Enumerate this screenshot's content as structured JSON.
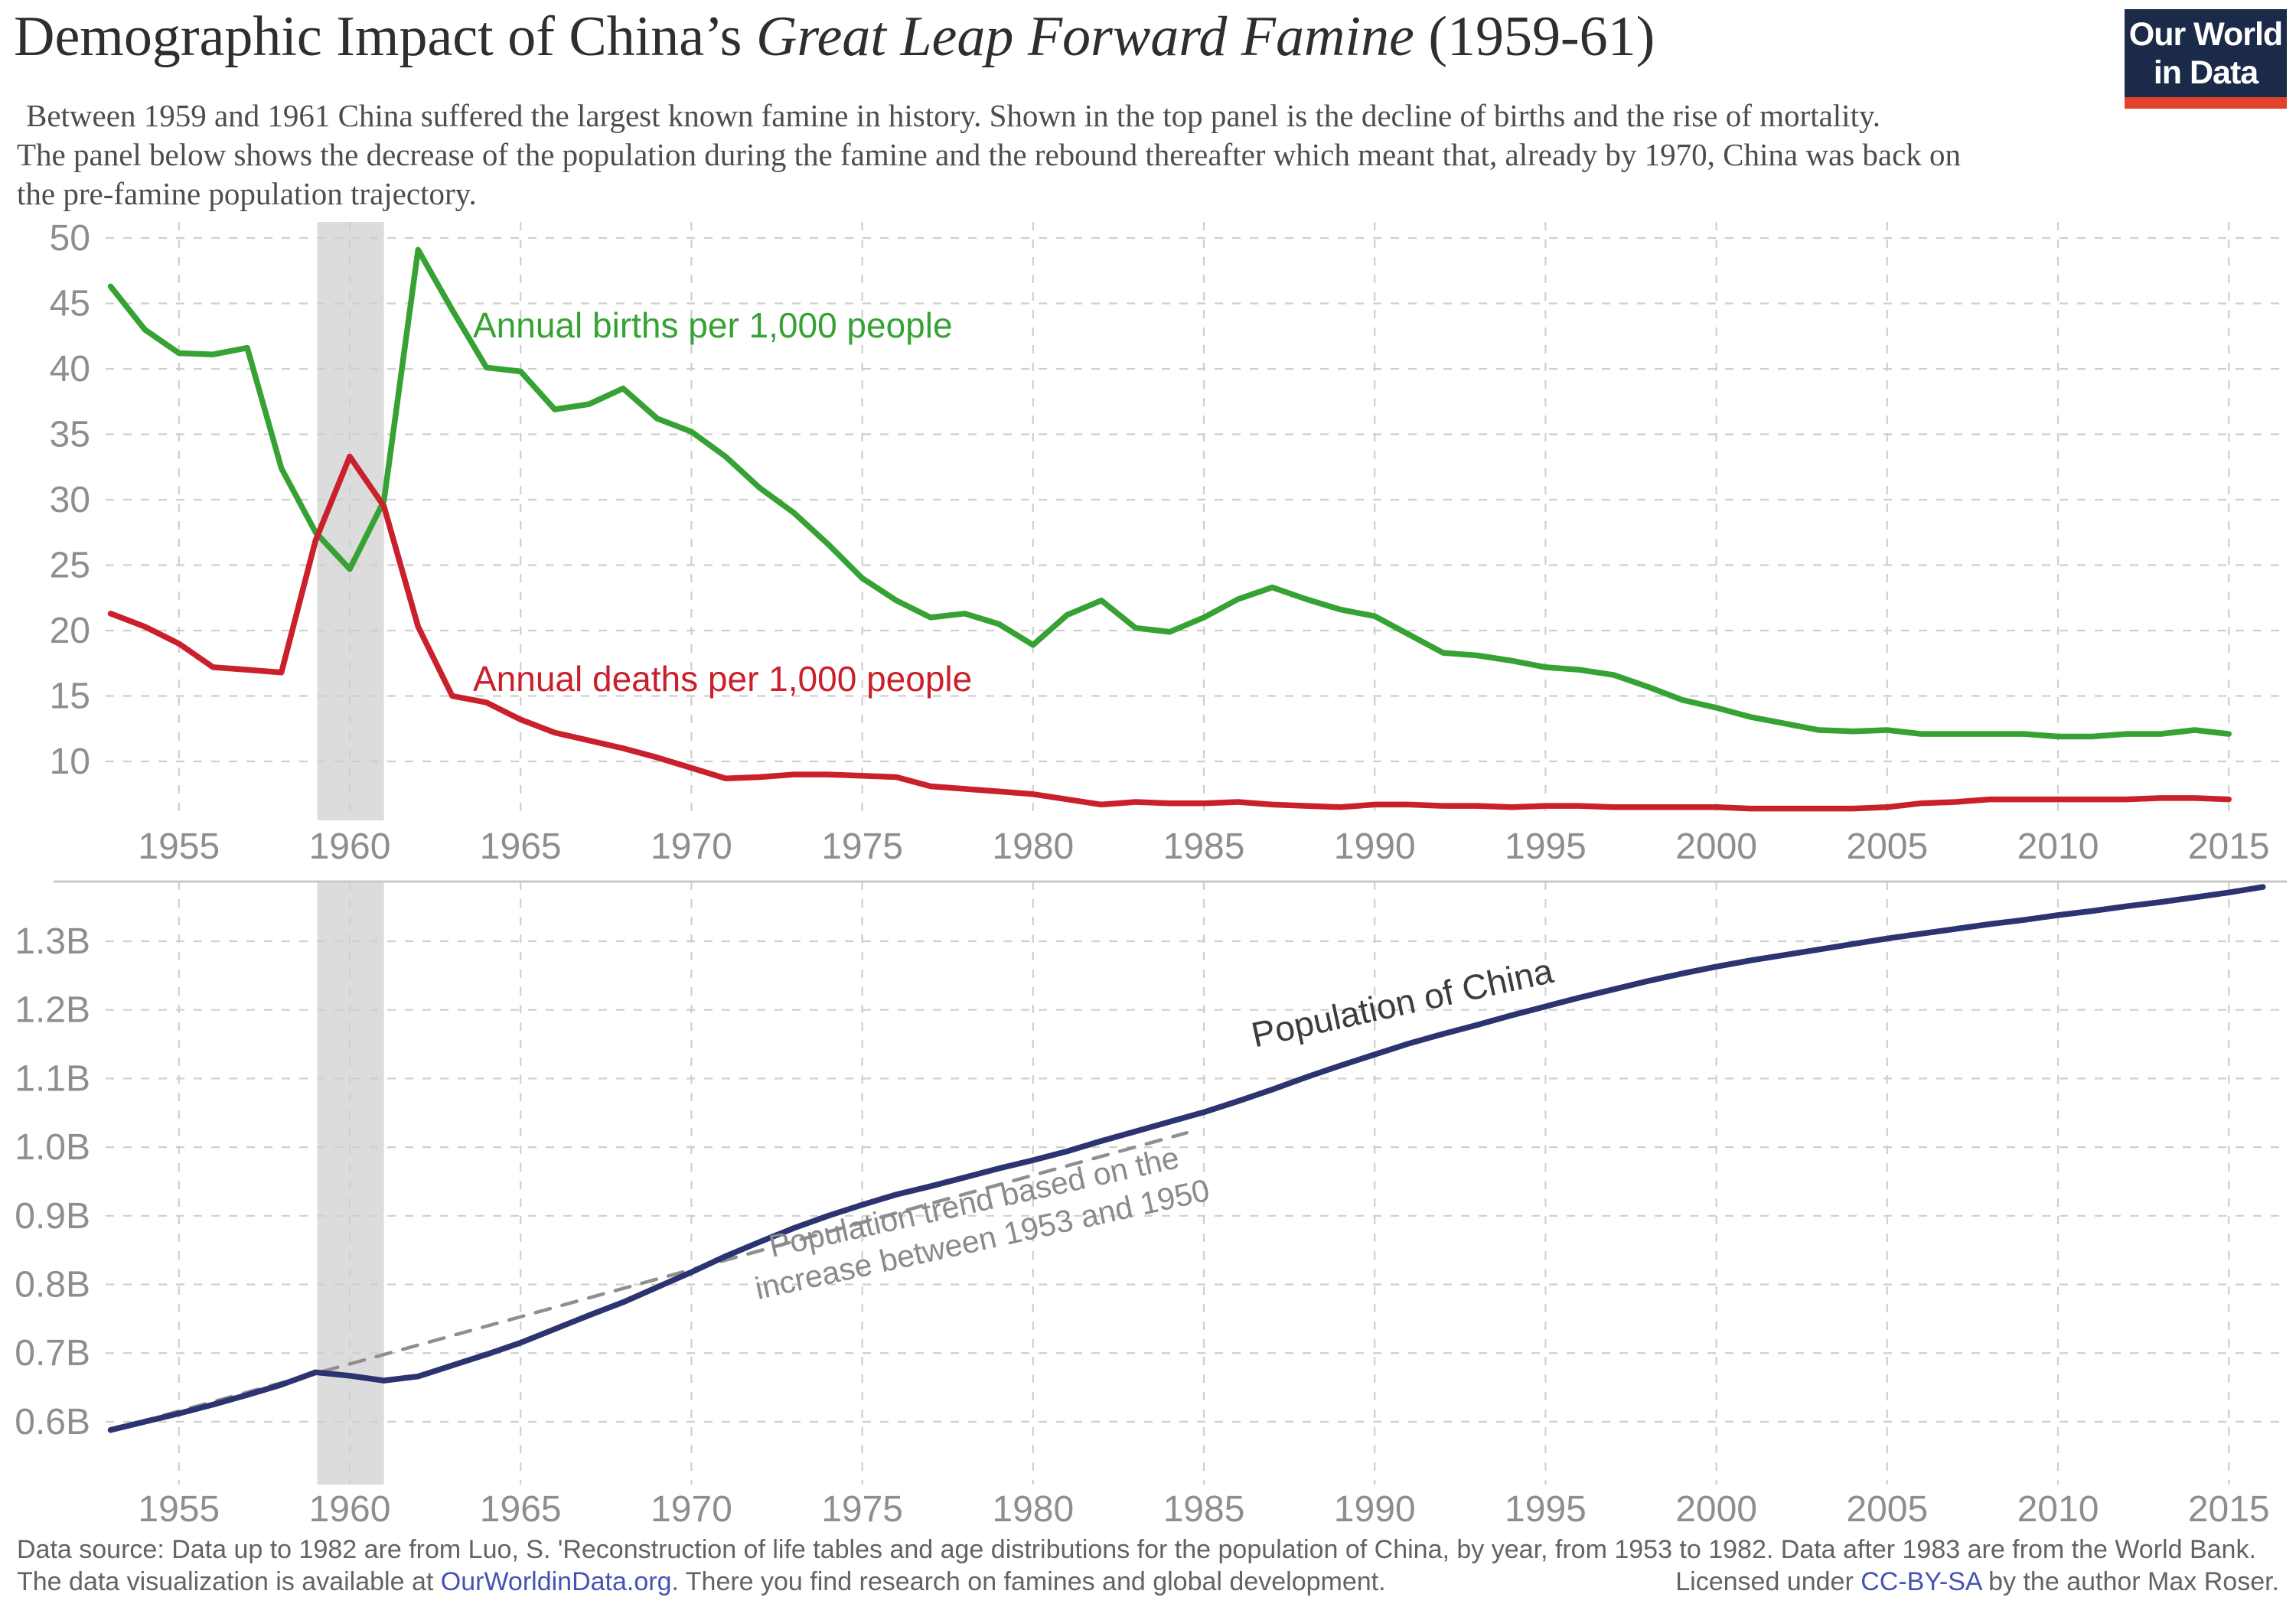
{
  "header": {
    "title_prefix": "Demographic Impact of China’s ",
    "title_italic": "Great Leap Forward Famine",
    "title_suffix": " (1959-61)",
    "subtitle_lines": [
      "Between 1959 and 1961 China suffered the largest known famine in history. Shown in the top panel is the decline of births and the rise of mortality.",
      "The panel below shows the decrease of the population during the famine and the rebound thereafter which meant that, already by 1970, China was back on",
      "the pre-famine population trajectory."
    ]
  },
  "logo": {
    "line1": "Our World",
    "line2": "in Data",
    "bg_color": "#1b2a49",
    "bar_color": "#e2422b"
  },
  "chart_data": [
    {
      "id": "vital-rates",
      "type": "line",
      "title": "",
      "xlabel": "",
      "ylabel": "",
      "x": [
        1953,
        1954,
        1955,
        1956,
        1957,
        1958,
        1959,
        1960,
        1961,
        1962,
        1963,
        1964,
        1965,
        1966,
        1967,
        1968,
        1969,
        1970,
        1971,
        1972,
        1973,
        1974,
        1975,
        1976,
        1977,
        1978,
        1979,
        1980,
        1981,
        1982,
        1983,
        1984,
        1985,
        1986,
        1987,
        1988,
        1989,
        1990,
        1991,
        1992,
        1993,
        1994,
        1995,
        1996,
        1997,
        1998,
        1999,
        2000,
        2001,
        2002,
        2003,
        2004,
        2005,
        2006,
        2007,
        2008,
        2009,
        2010,
        2011,
        2012,
        2013,
        2014,
        2015
      ],
      "series": [
        {
          "name": "Annual births per 1,000 people",
          "color": "#36a233",
          "values": [
            46.3,
            43.0,
            41.2,
            41.1,
            41.6,
            32.4,
            27.5,
            24.7,
            29.9,
            49.1,
            44.5,
            40.1,
            39.8,
            36.9,
            37.3,
            38.5,
            36.2,
            35.2,
            33.3,
            30.9,
            29.0,
            26.6,
            24.0,
            22.3,
            21.0,
            21.3,
            20.5,
            18.9,
            21.2,
            22.3,
            20.2,
            19.9,
            21.0,
            22.4,
            23.3,
            22.4,
            21.6,
            21.1,
            19.7,
            18.3,
            18.1,
            17.7,
            17.2,
            17.0,
            16.6,
            15.7,
            14.7,
            14.1,
            13.4,
            12.9,
            12.4,
            12.3,
            12.4,
            12.1,
            12.1,
            12.1,
            12.1,
            11.9,
            11.9,
            12.1,
            12.1,
            12.4,
            12.1
          ]
        },
        {
          "name": "Annual deaths per 1,000 people",
          "color": "#c9202c",
          "values": [
            21.3,
            20.3,
            19.0,
            17.2,
            17.0,
            16.8,
            26.9,
            33.3,
            29.5,
            20.3,
            15.0,
            14.5,
            13.2,
            12.2,
            11.6,
            11.0,
            10.3,
            9.5,
            8.7,
            8.8,
            9.0,
            9.0,
            8.9,
            8.8,
            8.1,
            7.9,
            7.7,
            7.5,
            7.1,
            6.7,
            6.9,
            6.8,
            6.8,
            6.9,
            6.7,
            6.6,
            6.5,
            6.7,
            6.7,
            6.6,
            6.6,
            6.5,
            6.6,
            6.6,
            6.5,
            6.5,
            6.5,
            6.5,
            6.4,
            6.4,
            6.4,
            6.4,
            6.5,
            6.8,
            6.9,
            7.1,
            7.1,
            7.1,
            7.1,
            7.1,
            7.2,
            7.2,
            7.1
          ]
        }
      ],
      "ylim": [
        1.8,
        51.3
      ],
      "yticks": [
        10,
        15,
        20,
        25,
        30,
        35,
        40,
        45,
        50
      ],
      "xticks": [
        1955,
        1960,
        1965,
        1970,
        1975,
        1980,
        1985,
        1990,
        1995,
        2000,
        2005,
        2010,
        2015
      ],
      "grid": true,
      "legend_position": "inline-labels",
      "highlight_span": {
        "from": 1959.05,
        "to": 1961.0,
        "color": "#dcdcdc"
      }
    },
    {
      "id": "population",
      "type": "line",
      "title": "",
      "xlabel": "",
      "ylabel": "",
      "x": [
        1953,
        1954,
        1955,
        1956,
        1957,
        1958,
        1959,
        1960,
        1961,
        1962,
        1963,
        1964,
        1965,
        1966,
        1967,
        1968,
        1969,
        1970,
        1971,
        1972,
        1973,
        1974,
        1975,
        1976,
        1977,
        1978,
        1979,
        1980,
        1981,
        1982,
        1983,
        1984,
        1985,
        1986,
        1987,
        1988,
        1989,
        1990,
        1991,
        1992,
        1993,
        1994,
        1995,
        1996,
        1997,
        1998,
        1999,
        2000,
        2001,
        2002,
        2003,
        2004,
        2005,
        2006,
        2007,
        2008,
        2009,
        2010,
        2011,
        2012,
        2013,
        2014,
        2015,
        2016
      ],
      "series": [
        {
          "name": "Population of China",
          "color": "#2b3371",
          "values": [
            0.588,
            0.6,
            0.612,
            0.625,
            0.639,
            0.654,
            0.672,
            0.667,
            0.66,
            0.666,
            0.682,
            0.698,
            0.715,
            0.735,
            0.755,
            0.774,
            0.796,
            0.818,
            0.841,
            0.862,
            0.882,
            0.9,
            0.916,
            0.931,
            0.943,
            0.956,
            0.969,
            0.981,
            0.994,
            1.009,
            1.023,
            1.037,
            1.051,
            1.067,
            1.084,
            1.102,
            1.119,
            1.135,
            1.151,
            1.165,
            1.178,
            1.192,
            1.205,
            1.218,
            1.23,
            1.242,
            1.253,
            1.263,
            1.272,
            1.28,
            1.288,
            1.296,
            1.304,
            1.311,
            1.318,
            1.325,
            1.331,
            1.338,
            1.344,
            1.351,
            1.357,
            1.364,
            1.371,
            1.379
          ]
        },
        {
          "name": "Population trend based on the increase between 1953 and 1950",
          "color": "#8f8f8f",
          "dash": true,
          "points": [
            [
              1953,
              0.588
            ],
            [
              1984.5,
              1.021
            ]
          ]
        }
      ],
      "trend_label_lines": [
        "Population trend based on the",
        "increase between 1953 and 1950"
      ],
      "ylim": [
        0.508,
        1.387
      ],
      "yticks": [
        0.6,
        0.7,
        0.8,
        0.9,
        1.0,
        1.1,
        1.2,
        1.3
      ],
      "ytick_format": "B",
      "xticks": [
        1955,
        1960,
        1965,
        1970,
        1975,
        1980,
        1985,
        1990,
        1995,
        2000,
        2005,
        2010,
        2015
      ],
      "grid": true,
      "legend_position": "inline-labels",
      "highlight_span": {
        "from": 1959.05,
        "to": 1961.0,
        "color": "#dcdcdc"
      }
    }
  ],
  "style": {
    "grid_color": "#cfcfcf",
    "tick_color": "#8e8e8e",
    "separator_color": "#c8c8c8"
  },
  "footer": {
    "line1": "Data source: Data up to 1982 are from Luo, S. 'Reconstruction of life tables and age distributions for the population of China, by year, from 1953 to 1982. Data after 1983 are from the World Bank.",
    "line2_prefix": "The data visualization is available at ",
    "line2_link": "OurWorldinData.org",
    "line2_suffix": ". There you find research on famines and global development.",
    "license_prefix": "Licensed under ",
    "license_link": "CC-BY-SA",
    "license_suffix": " by the author Max Roser."
  }
}
